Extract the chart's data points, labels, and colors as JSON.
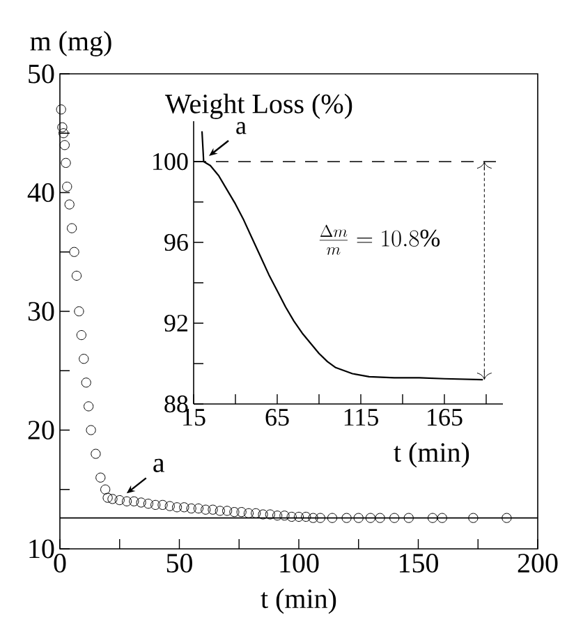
{
  "chart_data": [
    {
      "type": "scatter",
      "xlabel": "t (min)",
      "ylabel": "m (mg)",
      "series": [
        {
          "color": "#000000",
          "x": [
            0.5,
            1,
            1.5,
            2,
            2.5,
            3,
            4,
            5,
            6,
            7,
            8,
            9,
            10,
            11,
            12,
            13,
            15,
            17,
            19,
            20,
            22,
            25,
            28,
            31,
            34,
            37,
            40,
            43,
            46,
            49,
            52,
            55,
            58,
            61,
            64,
            67,
            70,
            73,
            76,
            79,
            82,
            85,
            88,
            91,
            94,
            97,
            100,
            103,
            106,
            109,
            114,
            120,
            125,
            130,
            134,
            140,
            146,
            156,
            160,
            173,
            187
          ],
          "values": [
            47,
            45.5,
            45,
            44,
            42.5,
            40.5,
            39,
            37,
            35,
            33,
            30,
            28,
            26,
            24,
            22,
            20,
            18,
            16,
            15,
            14.3,
            14.2,
            14.1,
            14.0,
            14.0,
            13.9,
            13.8,
            13.7,
            13.7,
            13.6,
            13.5,
            13.5,
            13.4,
            13.4,
            13.3,
            13.3,
            13.2,
            13.2,
            13.1,
            13.1,
            13.0,
            13.0,
            12.9,
            12.9,
            12.8,
            12.8,
            12.7,
            12.7,
            12.7,
            12.6,
            12.6,
            12.6,
            12.6,
            12.6,
            12.6,
            12.6,
            12.6,
            12.6,
            12.6,
            12.6,
            12.6,
            12.6
          ]
        }
      ],
      "marker": "circle",
      "xlim": [
        0,
        200
      ],
      "ylim": [
        10,
        50
      ],
      "xticks": [
        0,
        {
          "value": 25,
          "label": null
        },
        50,
        {
          "value": 75,
          "label": null
        },
        100,
        {
          "value": 125,
          "label": null
        },
        150,
        {
          "value": 175,
          "label": null
        },
        200
      ],
      "yticks": [
        10,
        {
          "value": 15,
          "label": null
        },
        20,
        {
          "value": 25,
          "label": null
        },
        30,
        {
          "value": 35,
          "label": null
        },
        40,
        {
          "value": 45,
          "label": null
        },
        50
      ],
      "ref_lines": [
        {
          "axis": "y",
          "value": 12.6,
          "line_style": "solid",
          "color": "#000000"
        }
      ],
      "annotations": [
        {
          "text": "a",
          "x": 25,
          "y": 14.2
        }
      ]
    },
    {
      "type": "line",
      "xlabel": "t (min)",
      "ylabel": "Weight Loss (%)",
      "series": [
        {
          "color": "#000000",
          "x": [
            20,
            21,
            25,
            30,
            35,
            40,
            45,
            50,
            55,
            60,
            65,
            70,
            75,
            80,
            85,
            90,
            95,
            100,
            110,
            120,
            135,
            150,
            165,
            188
          ],
          "values": [
            101.5,
            100,
            99.8,
            99.3,
            98.6,
            97.9,
            97.1,
            96.2,
            95.3,
            94.4,
            93.6,
            92.8,
            92.1,
            91.5,
            91.0,
            90.5,
            90.1,
            89.8,
            89.5,
            89.35,
            89.3,
            89.3,
            89.25,
            89.2
          ]
        }
      ],
      "marker": "none",
      "line_style": "solid",
      "xlim": [
        15,
        200
      ],
      "ylim": [
        88,
        102
      ],
      "xticks": [
        15,
        {
          "value": 40,
          "label": null
        },
        65,
        {
          "value": 90,
          "label": null
        },
        115,
        {
          "value": 140,
          "label": null
        },
        165,
        {
          "value": 190,
          "label": null
        }
      ],
      "yticks": [
        88,
        {
          "value": 90,
          "label": null
        },
        92,
        {
          "value": 94,
          "label": null
        },
        96,
        {
          "value": 98,
          "label": null
        },
        100
      ],
      "ref_lines": [
        {
          "axis": "y",
          "value": 100,
          "line_style": "dashed"
        }
      ],
      "annotations": [
        {
          "text": "a",
          "x": 20,
          "y": 100
        },
        "\\frac{\\Delta m}{m}=10.8\\%"
      ]
    }
  ]
}
